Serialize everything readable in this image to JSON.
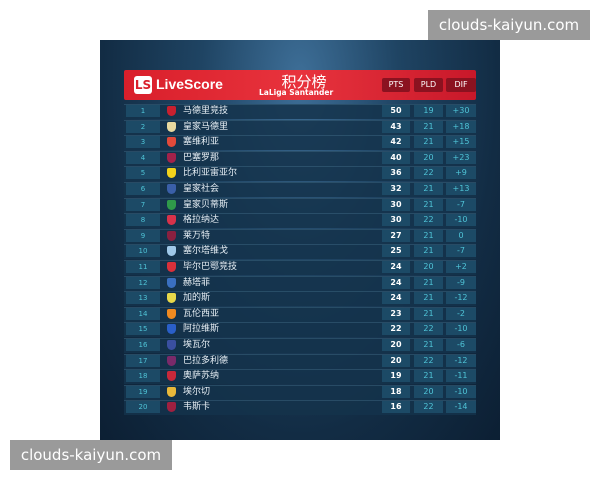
{
  "watermark": "clouds-kaiyun.com",
  "header": {
    "brand": "LiveScore",
    "logo": "LS",
    "title": "积分榜",
    "league": "LaLiga Santander",
    "columns": [
      "PTS",
      "PLD",
      "DIF"
    ]
  },
  "colors": {
    "header_red": "#d91f2b",
    "cell_bg": "#1c4a66",
    "accent_cyan": "#4fc3d6"
  },
  "rows": [
    {
      "rank": "1",
      "team": "马德里竞技",
      "pts": "50",
      "pld": "19",
      "dif": "+30",
      "badge_color": "#c8202f"
    },
    {
      "rank": "2",
      "team": "皇家马德里",
      "pts": "43",
      "pld": "21",
      "dif": "+18",
      "badge_color": "#e8d9a0"
    },
    {
      "rank": "3",
      "team": "塞维利亚",
      "pts": "42",
      "pld": "21",
      "dif": "+15",
      "badge_color": "#e24a3a"
    },
    {
      "rank": "4",
      "team": "巴塞罗那",
      "pts": "40",
      "pld": "20",
      "dif": "+23",
      "badge_color": "#a3224a"
    },
    {
      "rank": "5",
      "team": "比利亚雷亚尔",
      "pts": "36",
      "pld": "22",
      "dif": "+9",
      "badge_color": "#f2d21b"
    },
    {
      "rank": "6",
      "team": "皇家社会",
      "pts": "32",
      "pld": "21",
      "dif": "+13",
      "badge_color": "#3a5fa8"
    },
    {
      "rank": "7",
      "team": "皇家贝蒂斯",
      "pts": "30",
      "pld": "21",
      "dif": "-7",
      "badge_color": "#2f9a4a"
    },
    {
      "rank": "8",
      "team": "格拉纳达",
      "pts": "30",
      "pld": "22",
      "dif": "-10",
      "badge_color": "#d8324a"
    },
    {
      "rank": "9",
      "team": "莱万特",
      "pts": "27",
      "pld": "21",
      "dif": "0",
      "badge_color": "#8a2040"
    },
    {
      "rank": "10",
      "team": "塞尔塔维戈",
      "pts": "25",
      "pld": "21",
      "dif": "-7",
      "badge_color": "#9fc8e8"
    },
    {
      "rank": "11",
      "team": "毕尔巴鄂竞技",
      "pts": "24",
      "pld": "20",
      "dif": "+2",
      "badge_color": "#d9303a"
    },
    {
      "rank": "12",
      "team": "赫塔菲",
      "pts": "24",
      "pld": "21",
      "dif": "-9",
      "badge_color": "#3a6fc0"
    },
    {
      "rank": "13",
      "team": "加的斯",
      "pts": "24",
      "pld": "21",
      "dif": "-12",
      "badge_color": "#e8d84a"
    },
    {
      "rank": "14",
      "team": "瓦伦西亚",
      "pts": "23",
      "pld": "21",
      "dif": "-2",
      "badge_color": "#f08a20"
    },
    {
      "rank": "15",
      "team": "阿拉维斯",
      "pts": "22",
      "pld": "22",
      "dif": "-10",
      "badge_color": "#2a5fc8"
    },
    {
      "rank": "16",
      "team": "埃瓦尔",
      "pts": "20",
      "pld": "21",
      "dif": "-6",
      "badge_color": "#3a4fa0"
    },
    {
      "rank": "17",
      "team": "巴拉多利德",
      "pts": "20",
      "pld": "22",
      "dif": "-12",
      "badge_color": "#7a2a6a"
    },
    {
      "rank": "18",
      "team": "奥萨苏纳",
      "pts": "19",
      "pld": "21",
      "dif": "-11",
      "badge_color": "#c8283a"
    },
    {
      "rank": "19",
      "team": "埃尔切",
      "pts": "18",
      "pld": "20",
      "dif": "-10",
      "badge_color": "#e8b83a"
    },
    {
      "rank": "20",
      "team": "韦斯卡",
      "pts": "16",
      "pld": "22",
      "dif": "-14",
      "badge_color": "#a02040"
    }
  ]
}
